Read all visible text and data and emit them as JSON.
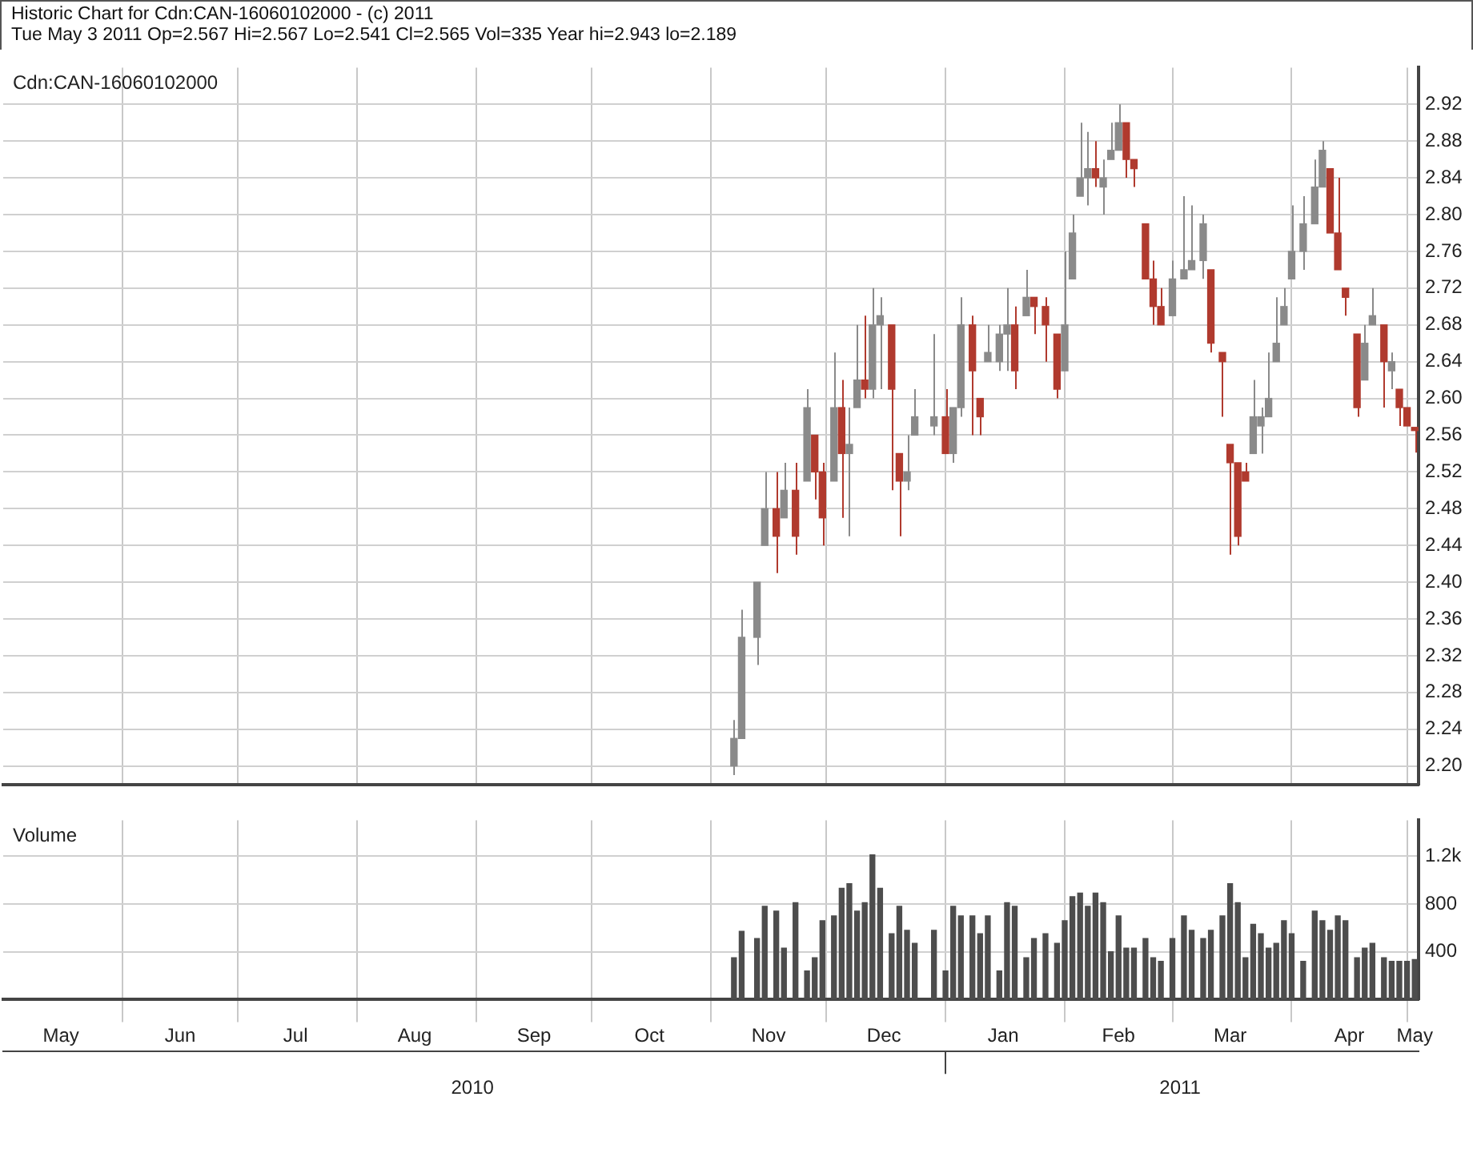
{
  "chart_data": [
    {
      "type": "candlestick",
      "title": "Historic Chart for Cdn:CAN-16060102000 - (c) 2011",
      "subtitle": "Tue May  3 2011  Op=2.567  Hi=2.567  Lo=2.541  Cl=2.565  Vol=335  Year hi=2.943  lo=2.189",
      "annotations": [
        "Cdn:CAN-16060102000"
      ],
      "colors": [
        "#8a8a8a",
        "#8a8a8a",
        "#8a8a8a",
        "#8a8a8a",
        "#b03a2e",
        "#8a8a8a",
        "#b03a2e",
        "#8a8a8a",
        "#b03a2e",
        "#b03a2e",
        "#8a8a8a",
        "#b03a2e",
        "#8a8a8a",
        "#8a8a8a",
        "#b03a2e",
        "#8a8a8a",
        "#8a8a8a",
        "#b03a2e",
        "#b03a2e",
        "#8a8a8a",
        "#8a8a8a",
        "#8a8a8a",
        "#b03a2e",
        "#8a8a8a",
        "#8a8a8a",
        "#b03a2e",
        "#b03a2e",
        "#8a8a8a",
        "#8a8a8a",
        "#8a8a8a",
        "#b03a2e",
        "#8a8a8a",
        "#b03a2e",
        "#b03a2e",
        "#b03a2e",
        "#8a8a8a",
        "#8a8a8a",
        "#8a8a8a",
        "#8a8a8a",
        "#b03a2e",
        "#8a8a8a",
        "#8a8a8a",
        "#8a8a8a",
        "#b03a2e",
        "#b03a2e",
        "#b03a2e",
        "#b03a2e",
        "#b03a2e",
        "#8a8a8a",
        "#8a8a8a",
        "#8a8a8a",
        "#8a8a8a",
        "#b03a2e",
        "#b03a2e",
        "#b03a2e",
        "#b03a2e",
        "#b03a2e",
        "#8a8a8a",
        "#8a8a8a",
        "#8a8a8a",
        "#8a8a8a",
        "#8a8a8a",
        "#8a8a8a",
        "#8a8a8a",
        "#8a8a8a",
        "#8a8a8a",
        "#b03a2e",
        "#b03a2e",
        "#b03a2e",
        "#b03a2e",
        "#8a8a8a",
        "#8a8a8a",
        "#b03a2e",
        "#8a8a8a",
        "#b03a2e",
        "#b03a2e",
        "#b03a2e"
      ],
      "grid": true,
      "tick_labels": "y",
      "xlim": [
        "2010-05-01",
        "2011-05-04"
      ],
      "xticks": [
        {
          "value": "2010-06-01",
          "label": null
        },
        {
          "value": "2010-07-01",
          "label": null
        },
        {
          "value": "2010-08-01",
          "label": null
        },
        {
          "value": "2010-09-01",
          "label": null
        },
        {
          "value": "2010-10-01",
          "label": null
        },
        {
          "value": "2010-11-01",
          "label": null
        },
        {
          "value": "2010-12-01",
          "label": null
        },
        {
          "value": "2011-01-01",
          "label": null
        },
        {
          "value": "2011-02-01",
          "label": null
        },
        {
          "value": "2011-03-01",
          "label": null
        },
        {
          "value": "2011-04-01",
          "label": null
        },
        {
          "value": "2011-05-01",
          "label": null
        }
      ],
      "ylim": [
        2.18,
        2.96
      ],
      "yticks": [
        2.92,
        2.88,
        2.84,
        {
          "value": 2.8,
          "label": "2.80"
        },
        2.76,
        2.72,
        2.68,
        2.64,
        {
          "value": 2.6,
          "label": "2.60"
        },
        2.56,
        2.52,
        2.48,
        2.44,
        {
          "value": 2.4,
          "label": "2.40"
        },
        2.36,
        2.32,
        2.28,
        2.24,
        {
          "value": 2.2,
          "label": "2.20"
        }
      ],
      "x": [
        "2010-11-07",
        "2010-11-09",
        "2010-11-13",
        "2010-11-15",
        "2010-11-18",
        "2010-11-20",
        "2010-11-23",
        "2010-11-26",
        "2010-11-28",
        "2010-11-30",
        "2010-12-03",
        "2010-12-05",
        "2010-12-07",
        "2010-12-09",
        "2010-12-11",
        "2010-12-13",
        "2010-12-15",
        "2010-12-18",
        "2010-12-20",
        "2010-12-22",
        "2010-12-24",
        "2010-12-29",
        "2011-01-01",
        "2011-01-03",
        "2011-01-05",
        "2011-01-08",
        "2011-01-10",
        "2011-01-12",
        "2011-01-15",
        "2011-01-17",
        "2011-01-19",
        "2011-01-22",
        "2011-01-24",
        "2011-01-27",
        "2011-01-30",
        "2011-02-01",
        "2011-02-03",
        "2011-02-05",
        "2011-02-07",
        "2011-02-09",
        "2011-02-11",
        "2011-02-13",
        "2011-02-15",
        "2011-02-17",
        "2011-02-19",
        "2011-02-22",
        "2011-02-24",
        "2011-02-26",
        "2011-03-01",
        "2011-03-04",
        "2011-03-06",
        "2011-03-09",
        "2011-03-11",
        "2011-03-14",
        "2011-03-16",
        "2011-03-18",
        "2011-03-20",
        "2011-03-22",
        "2011-03-24",
        "2011-03-26",
        "2011-03-28",
        "2011-03-30",
        "2011-04-01",
        "2011-04-04",
        "2011-04-07",
        "2011-04-09",
        "2011-04-11",
        "2011-04-13",
        "2011-04-15",
        "2011-04-18",
        "2011-04-20",
        "2011-04-22",
        "2011-04-25",
        "2011-04-27",
        "2011-04-29",
        "2011-05-01",
        "2011-05-03"
      ],
      "ohlc": [
        [
          2.2,
          2.25,
          2.19,
          2.23
        ],
        [
          2.23,
          2.37,
          2.23,
          2.34
        ],
        [
          2.34,
          2.4,
          2.31,
          2.4
        ],
        [
          2.44,
          2.52,
          2.44,
          2.48
        ],
        [
          2.48,
          2.52,
          2.41,
          2.45
        ],
        [
          2.47,
          2.53,
          2.47,
          2.5
        ],
        [
          2.5,
          2.53,
          2.43,
          2.45
        ],
        [
          2.51,
          2.61,
          2.51,
          2.59
        ],
        [
          2.56,
          2.56,
          2.49,
          2.52
        ],
        [
          2.52,
          2.53,
          2.44,
          2.47
        ],
        [
          2.51,
          2.65,
          2.51,
          2.59
        ],
        [
          2.59,
          2.62,
          2.47,
          2.54
        ],
        [
          2.54,
          2.59,
          2.45,
          2.55
        ],
        [
          2.59,
          2.68,
          2.59,
          2.62
        ],
        [
          2.62,
          2.69,
          2.6,
          2.61
        ],
        [
          2.61,
          2.72,
          2.6,
          2.68
        ],
        [
          2.68,
          2.71,
          2.61,
          2.69
        ],
        [
          2.68,
          2.68,
          2.5,
          2.61
        ],
        [
          2.54,
          2.54,
          2.45,
          2.51
        ],
        [
          2.51,
          2.56,
          2.5,
          2.52
        ],
        [
          2.56,
          2.61,
          2.56,
          2.58
        ],
        [
          2.57,
          2.67,
          2.56,
          2.58
        ],
        [
          2.58,
          2.61,
          2.54,
          2.54
        ],
        [
          2.54,
          2.59,
          2.53,
          2.59
        ],
        [
          2.59,
          2.71,
          2.58,
          2.68
        ],
        [
          2.68,
          2.69,
          2.56,
          2.63
        ],
        [
          2.6,
          2.6,
          2.56,
          2.58
        ],
        [
          2.64,
          2.68,
          2.64,
          2.65
        ],
        [
          2.64,
          2.68,
          2.63,
          2.67
        ],
        [
          2.67,
          2.72,
          2.63,
          2.68
        ],
        [
          2.68,
          2.7,
          2.61,
          2.63
        ],
        [
          2.69,
          2.74,
          2.69,
          2.71
        ],
        [
          2.71,
          2.71,
          2.67,
          2.7
        ],
        [
          2.7,
          2.71,
          2.64,
          2.68
        ],
        [
          2.67,
          2.67,
          2.6,
          2.61
        ],
        [
          2.63,
          2.76,
          2.63,
          2.68
        ],
        [
          2.73,
          2.8,
          2.73,
          2.78
        ],
        [
          2.82,
          2.9,
          2.82,
          2.84
        ],
        [
          2.84,
          2.89,
          2.81,
          2.85
        ],
        [
          2.85,
          2.88,
          2.83,
          2.84
        ],
        [
          2.83,
          2.86,
          2.8,
          2.84
        ],
        [
          2.86,
          2.9,
          2.86,
          2.87
        ],
        [
          2.87,
          2.92,
          2.87,
          2.9
        ],
        [
          2.9,
          2.9,
          2.84,
          2.86
        ],
        [
          2.86,
          2.86,
          2.83,
          2.85
        ],
        [
          2.79,
          2.79,
          2.73,
          2.73
        ],
        [
          2.73,
          2.75,
          2.68,
          2.7
        ],
        [
          2.7,
          2.72,
          2.68,
          2.68
        ],
        [
          2.69,
          2.75,
          2.69,
          2.73
        ],
        [
          2.73,
          2.82,
          2.73,
          2.74
        ],
        [
          2.74,
          2.81,
          2.74,
          2.75
        ],
        [
          2.75,
          2.8,
          2.73,
          2.79
        ],
        [
          2.74,
          2.74,
          2.65,
          2.66
        ],
        [
          2.65,
          2.65,
          2.58,
          2.64
        ],
        [
          2.55,
          2.55,
          2.43,
          2.53
        ],
        [
          2.53,
          2.53,
          2.44,
          2.45
        ],
        [
          2.52,
          2.53,
          2.51,
          2.51
        ],
        [
          2.54,
          2.62,
          2.54,
          2.58
        ],
        [
          2.57,
          2.59,
          2.54,
          2.58
        ],
        [
          2.58,
          2.65,
          2.58,
          2.6
        ],
        [
          2.64,
          2.71,
          2.64,
          2.66
        ],
        [
          2.68,
          2.72,
          2.68,
          2.7
        ],
        [
          2.73,
          2.81,
          2.73,
          2.76
        ],
        [
          2.76,
          2.82,
          2.74,
          2.79
        ],
        [
          2.79,
          2.86,
          2.79,
          2.83
        ],
        [
          2.83,
          2.88,
          2.83,
          2.87
        ],
        [
          2.85,
          2.85,
          2.78,
          2.78
        ],
        [
          2.78,
          2.84,
          2.74,
          2.74
        ],
        [
          2.72,
          2.72,
          2.69,
          2.71
        ],
        [
          2.67,
          2.67,
          2.58,
          2.59
        ],
        [
          2.62,
          2.68,
          2.62,
          2.66
        ],
        [
          2.68,
          2.72,
          2.68,
          2.69
        ],
        [
          2.68,
          2.68,
          2.59,
          2.64
        ],
        [
          2.63,
          2.65,
          2.61,
          2.64
        ],
        [
          2.61,
          2.61,
          2.57,
          2.59
        ],
        [
          2.59,
          2.59,
          2.57,
          2.57
        ],
        [
          2.567,
          2.567,
          2.541,
          2.565
        ]
      ]
    },
    {
      "type": "bar",
      "annotations": [
        "Volume"
      ],
      "color": "#4d4d4d",
      "grid": true,
      "xlim": [
        "2010-05-01",
        "2011-05-04"
      ],
      "xticks": [
        {
          "value": "2010-05-16",
          "label": "May"
        },
        {
          "value": "2010-06-01",
          "label": null
        },
        {
          "value": "2010-06-16",
          "label": "Jun"
        },
        {
          "value": "2010-07-01",
          "label": null
        },
        {
          "value": "2010-07-16",
          "label": "Jul"
        },
        {
          "value": "2010-08-01",
          "label": null
        },
        {
          "value": "2010-08-16",
          "label": "Aug"
        },
        {
          "value": "2010-09-01",
          "label": null
        },
        {
          "value": "2010-09-16",
          "label": "Sep"
        },
        {
          "value": "2010-10-01",
          "label": null
        },
        {
          "value": "2010-10-16",
          "label": "Oct"
        },
        {
          "value": "2010-11-01",
          "label": null
        },
        {
          "value": "2010-11-16",
          "label": "Nov"
        },
        {
          "value": "2010-12-01",
          "label": null
        },
        {
          "value": "2010-12-16",
          "label": "Dec"
        },
        {
          "value": "2011-01-01",
          "label": null
        },
        {
          "value": "2011-01-16",
          "label": "Jan"
        },
        {
          "value": "2011-02-01",
          "label": null
        },
        {
          "value": "2011-02-15",
          "label": "Feb"
        },
        {
          "value": "2011-03-01",
          "label": null
        },
        {
          "value": "2011-03-16",
          "label": "Mar"
        },
        {
          "value": "2011-04-01",
          "label": null
        },
        {
          "value": "2011-04-16",
          "label": "Apr"
        },
        {
          "value": "2011-05-01",
          "label": null
        },
        {
          "value": "2011-05-03",
          "label": "May"
        }
      ],
      "x2lim": [
        "2010-05-01",
        "2011-05-04"
      ],
      "x2ticks": [
        {
          "value": "2010-08-31",
          "label": "2010"
        },
        {
          "value": "2011-01-01",
          "label": null
        },
        {
          "value": "2011-03-03",
          "label": "2011"
        }
      ],
      "ylim": [
        0,
        1500
      ],
      "yticks": [
        400,
        800,
        {
          "value": 1200,
          "label": "1.2k"
        }
      ],
      "x": [
        "2010-11-07",
        "2010-11-09",
        "2010-11-13",
        "2010-11-15",
        "2010-11-18",
        "2010-11-20",
        "2010-11-23",
        "2010-11-26",
        "2010-11-28",
        "2010-11-30",
        "2010-12-03",
        "2010-12-05",
        "2010-12-07",
        "2010-12-09",
        "2010-12-11",
        "2010-12-13",
        "2010-12-15",
        "2010-12-18",
        "2010-12-20",
        "2010-12-22",
        "2010-12-24",
        "2010-12-29",
        "2011-01-01",
        "2011-01-03",
        "2011-01-05",
        "2011-01-08",
        "2011-01-10",
        "2011-01-12",
        "2011-01-15",
        "2011-01-17",
        "2011-01-19",
        "2011-01-22",
        "2011-01-24",
        "2011-01-27",
        "2011-01-30",
        "2011-02-01",
        "2011-02-03",
        "2011-02-05",
        "2011-02-07",
        "2011-02-09",
        "2011-02-11",
        "2011-02-13",
        "2011-02-15",
        "2011-02-17",
        "2011-02-19",
        "2011-02-22",
        "2011-02-24",
        "2011-02-26",
        "2011-03-01",
        "2011-03-04",
        "2011-03-06",
        "2011-03-09",
        "2011-03-11",
        "2011-03-14",
        "2011-03-16",
        "2011-03-18",
        "2011-03-20",
        "2011-03-22",
        "2011-03-24",
        "2011-03-26",
        "2011-03-28",
        "2011-03-30",
        "2011-04-01",
        "2011-04-04",
        "2011-04-07",
        "2011-04-09",
        "2011-04-11",
        "2011-04-13",
        "2011-04-15",
        "2011-04-18",
        "2011-04-20",
        "2011-04-22",
        "2011-04-25",
        "2011-04-27",
        "2011-04-29",
        "2011-05-01",
        "2011-05-03"
      ],
      "values": [
        350,
        570,
        510,
        780,
        740,
        430,
        810,
        240,
        350,
        660,
        700,
        930,
        970,
        740,
        810,
        1210,
        930,
        550,
        780,
        580,
        470,
        580,
        240,
        780,
        700,
        700,
        550,
        700,
        240,
        810,
        780,
        350,
        510,
        550,
        470,
        660,
        860,
        890,
        780,
        890,
        810,
        400,
        700,
        430,
        430,
        510,
        350,
        320,
        510,
        700,
        580,
        510,
        580,
        700,
        970,
        810,
        350,
        630,
        550,
        430,
        470,
        660,
        550,
        320,
        740,
        660,
        580,
        700,
        660,
        350,
        430,
        470,
        350,
        320,
        320,
        320,
        335
      ]
    }
  ]
}
